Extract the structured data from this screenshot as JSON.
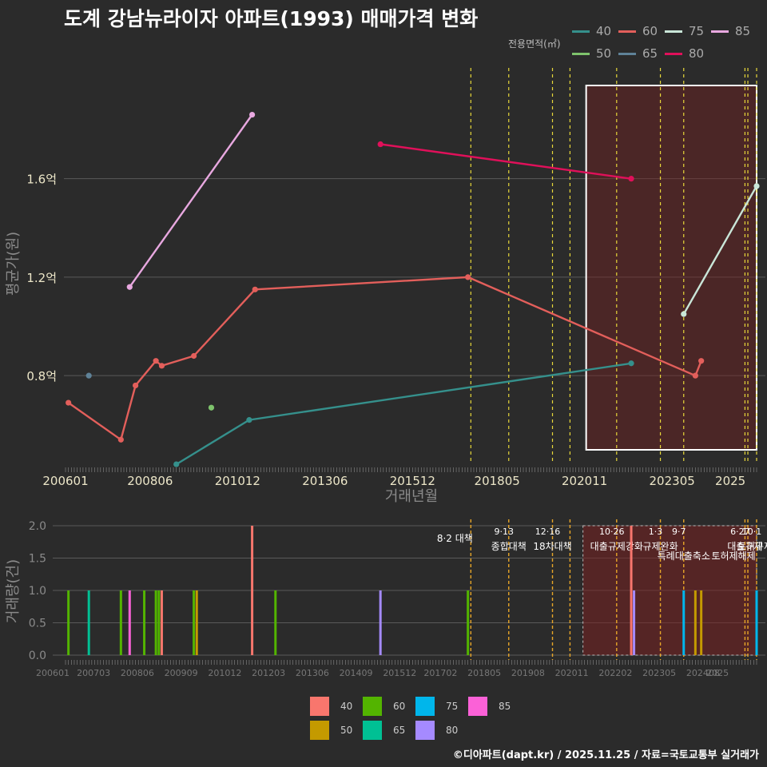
{
  "title": "도계 강남뉴라이자 아파트(1993) 매매가격 변화",
  "legend_title": "전용면적(㎡)",
  "footer": "©디아파트(dapt.kr) / 2025.11.25 / 자료=국토교통부 실거래가",
  "chart_data": [
    {
      "type": "line",
      "title": "도계 강남뉴라이자 아파트(1993) 매매가격 변화",
      "xlabel": "거래년월",
      "ylabel": "평균가(원)",
      "ylim": [
        0.45,
        2.05
      ],
      "yunit": "억",
      "yticks": [
        0.8,
        1.2,
        1.6
      ],
      "ytick_labels": [
        "0.8억",
        "1.2억",
        "1.6억"
      ],
      "xtick_labels": [
        "200601",
        "200806",
        "201012",
        "201306",
        "201512",
        "201805",
        "202011",
        "202305",
        "2025"
      ],
      "series": [
        {
          "name": "40",
          "color": "#35908c",
          "points": [
            [
              "2009-03",
              0.44
            ],
            [
              "2011-04",
              0.62
            ],
            [
              "2022-03",
              0.85
            ]
          ]
        },
        {
          "name": "50",
          "color": "#7ec36c",
          "points": [
            [
              "2010-03",
              0.67
            ]
          ]
        },
        {
          "name": "60",
          "color": "#e35f5b",
          "points": [
            [
              "2006-02",
              0.69
            ],
            [
              "2007-08",
              0.54
            ],
            [
              "2008-01",
              0.76
            ],
            [
              "2008-08",
              0.86
            ],
            [
              "2008-10",
              0.84
            ],
            [
              "2009-09",
              0.88
            ],
            [
              "2011-06",
              1.15
            ],
            [
              "2017-07",
              1.2
            ],
            [
              "2024-01",
              0.8
            ],
            [
              "2024-03",
              0.86
            ]
          ]
        },
        {
          "name": "65",
          "color": "#5f8298",
          "points": [
            [
              "2006-09",
              0.8
            ]
          ]
        },
        {
          "name": "75",
          "color": "#c9e6d8",
          "points": [
            [
              "2023-09",
              1.05
            ],
            [
              "2025-10",
              1.57
            ]
          ]
        },
        {
          "name": "80",
          "color": "#e0105a",
          "points": [
            [
              "2015-01",
              1.74
            ],
            [
              "2022-03",
              1.6
            ]
          ]
        },
        {
          "name": "85",
          "color": "#e8a8e0",
          "points": [
            [
              "2007-11",
              1.16
            ],
            [
              "2011-05",
              1.86
            ]
          ]
        }
      ],
      "highlight_range": [
        "2020-11",
        "2025-10"
      ],
      "policy_lines": [
        "2017-08",
        "2018-09",
        "2019-12",
        "2020-06",
        "2021-10",
        "2023-01",
        "2023-09",
        "2025-06",
        "2025-07",
        "2025-10"
      ],
      "legend": [
        "40",
        "50",
        "60",
        "65",
        "75",
        "80",
        "85"
      ],
      "legend_placement": "top-right"
    },
    {
      "type": "bar",
      "xlabel": "",
      "ylabel": "거래량(건)",
      "ylim": [
        0,
        2.0
      ],
      "yticks": [
        0.0,
        0.5,
        1.0,
        1.5,
        2.0
      ],
      "ytick_labels": [
        "0.0",
        "0.5",
        "1.0",
        "1.5",
        "2.0"
      ],
      "xtick_labels": [
        "200601",
        "200703",
        "200806",
        "200909",
        "201012",
        "201203",
        "201306",
        "201409",
        "201512",
        "201702",
        "201805",
        "201908",
        "202011",
        "202202",
        "202305",
        "202408",
        "2025"
      ],
      "bars": [
        {
          "date": "2006-02",
          "group": "60",
          "count": 1
        },
        {
          "date": "2006-09",
          "group": "65",
          "count": 1
        },
        {
          "date": "2007-08",
          "group": "60",
          "count": 1
        },
        {
          "date": "2007-11",
          "group": "85",
          "count": 1
        },
        {
          "date": "2008-04",
          "group": "60",
          "count": 1
        },
        {
          "date": "2008-08",
          "group": "60",
          "count": 1
        },
        {
          "date": "2008-09",
          "group": "60",
          "count": 1
        },
        {
          "date": "2008-10",
          "group": "40",
          "count": 1
        },
        {
          "date": "2009-09",
          "group": "60",
          "count": 1
        },
        {
          "date": "2009-10",
          "group": "50",
          "count": 1
        },
        {
          "date": "2011-05",
          "group": "40",
          "count": 2
        },
        {
          "date": "2012-01",
          "group": "60",
          "count": 1
        },
        {
          "date": "2015-01",
          "group": "80",
          "count": 1
        },
        {
          "date": "2017-07",
          "group": "60",
          "count": 1
        },
        {
          "date": "2022-03",
          "group": "40",
          "count": 2
        },
        {
          "date": "2022-03",
          "group": "80",
          "count": 1
        },
        {
          "date": "2023-09",
          "group": "75",
          "count": 1
        },
        {
          "date": "2024-01",
          "group": "50",
          "count": 1
        },
        {
          "date": "2024-03",
          "group": "50",
          "count": 1
        },
        {
          "date": "2025-10",
          "group": "75",
          "count": 1
        }
      ],
      "policy_annotations": [
        {
          "date": "2017-08",
          "date_label": "",
          "label": "8·2 대책"
        },
        {
          "date": "2018-09",
          "date_label": "9·13",
          "label": "종합대책"
        },
        {
          "date": "2019-12",
          "date_label": "12·16",
          "label": "18차대책"
        },
        {
          "date": "2020-06",
          "date_label": "",
          "label": ""
        },
        {
          "date": "2021-10",
          "date_label": "10·26",
          "label": "대출규제강화"
        },
        {
          "date": "2023-01",
          "date_label": "1·3",
          "label": "규제완화"
        },
        {
          "date": "2023-09",
          "date_label": "9·7",
          "label": "특례대출축소"
        },
        {
          "date": "2025-06",
          "date_label": "6·27",
          "label": "대출규제"
        },
        {
          "date": "2025-07",
          "date_label": "",
          "label": "토허제해제"
        },
        {
          "date": "2025-10",
          "date_label": "10·1",
          "label": "토허규제"
        }
      ],
      "legend": [
        {
          "name": "40",
          "color": "#f8766d"
        },
        {
          "name": "50",
          "color": "#c49a00"
        },
        {
          "name": "60",
          "color": "#53b400"
        },
        {
          "name": "65",
          "color": "#00c094"
        },
        {
          "name": "75",
          "color": "#00b6eb"
        },
        {
          "name": "80",
          "color": "#a58aff"
        },
        {
          "name": "85",
          "color": "#fb61d7"
        }
      ],
      "legend_placement": "bottom"
    }
  ]
}
